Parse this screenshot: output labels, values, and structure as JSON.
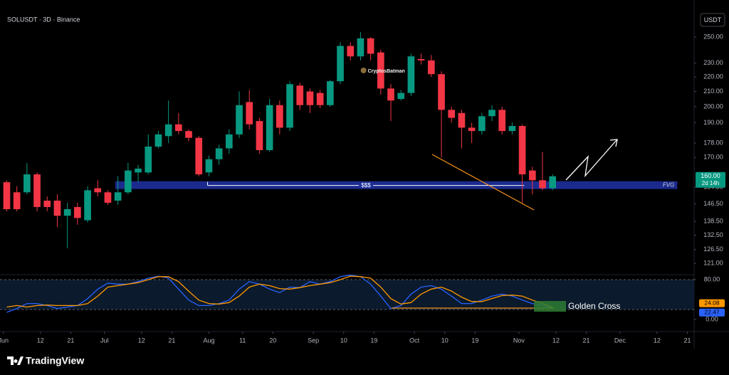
{
  "header": {
    "symbol": "SOLUSDT · 3D · Binance",
    "currency": "USDT"
  },
  "footer": {
    "brand": "TradingView"
  },
  "chart_data": [
    {
      "type": "candlestick",
      "log_scale": true,
      "grid": false,
      "up_color": "#089981",
      "down_color": "#f23645",
      "xlim": [
        -1,
        205
      ],
      "ylim": [
        117,
        269
      ],
      "x": [
        1,
        4,
        7,
        10,
        13,
        16,
        19,
        22,
        25,
        28,
        31,
        34,
        37,
        40,
        43,
        46,
        49,
        52,
        55,
        58,
        61,
        64,
        67,
        70,
        73,
        76,
        79,
        82,
        85,
        88,
        91,
        94,
        97,
        100,
        103,
        106,
        109,
        112,
        115,
        118,
        121,
        124,
        127,
        130,
        133,
        136,
        139,
        142,
        145,
        148,
        151,
        154,
        157,
        160,
        163
      ],
      "open": [
        157,
        152,
        152,
        161,
        148,
        148,
        141,
        145,
        139,
        154,
        152,
        148,
        152,
        162,
        162,
        176,
        182,
        189,
        185,
        181,
        162,
        169,
        175,
        183,
        203,
        191,
        174,
        201,
        187,
        214,
        210,
        209,
        201,
        217,
        243,
        235,
        249,
        238,
        212,
        205,
        209,
        233,
        232,
        222,
        198,
        196,
        187,
        185,
        194,
        198,
        185,
        188,
        163,
        158,
        154
      ],
      "high": [
        158,
        155,
        167,
        162,
        150,
        151,
        147,
        147,
        155,
        158,
        153,
        160,
        167,
        166,
        183,
        185,
        204,
        196,
        186,
        182,
        171,
        177,
        186,
        210,
        211,
        193,
        205,
        204,
        217,
        216,
        212,
        211,
        218,
        246,
        246,
        254,
        250,
        240,
        215,
        211,
        237,
        237,
        236,
        224,
        200,
        198,
        190,
        196,
        201,
        200,
        190,
        189,
        165,
        173,
        161
      ],
      "low": [
        143,
        143,
        151,
        143,
        143,
        136,
        127,
        137,
        138,
        150,
        146,
        146,
        151,
        157,
        161,
        175,
        178,
        183,
        179,
        160,
        160,
        166,
        172,
        181,
        186,
        172,
        173,
        183,
        185,
        198,
        196,
        199,
        200,
        215,
        232,
        232,
        232,
        208,
        191,
        204,
        207,
        229,
        220,
        170,
        190,
        175,
        178,
        183,
        191,
        183,
        183,
        147,
        151,
        153,
        153
      ],
      "close": [
        144,
        144,
        161,
        145,
        145,
        141,
        144,
        140,
        153,
        152,
        147,
        152,
        163,
        164,
        176,
        183,
        189,
        185,
        181,
        161,
        169,
        175,
        183,
        201,
        189,
        174,
        201,
        187,
        215,
        201,
        201,
        201,
        217,
        243,
        235,
        249,
        237,
        212,
        204,
        209,
        235,
        232,
        222,
        198,
        193,
        187,
        185,
        194,
        198,
        185,
        188,
        161,
        158,
        154,
        160
      ],
      "yticks": [
        {
          "value": 250,
          "label": "250.00"
        },
        {
          "value": 230,
          "label": "230.00"
        },
        {
          "value": 220,
          "label": "220.00"
        },
        {
          "value": 210,
          "label": "210.00"
        },
        {
          "value": 200,
          "label": "200.00"
        },
        {
          "value": 190,
          "label": "190.00"
        },
        {
          "value": 178,
          "label": "178.00"
        },
        {
          "value": 170,
          "label": "170.00"
        },
        {
          "value": 154.5,
          "label": "154.50"
        },
        {
          "value": 146.5,
          "label": "146.50"
        },
        {
          "value": 138.5,
          "label": "138.50"
        },
        {
          "value": 132.5,
          "label": "132.50"
        },
        {
          "value": 126.5,
          "label": "126.50"
        },
        {
          "value": 121,
          "label": "121.00"
        }
      ],
      "xticks": [
        {
          "value": 0,
          "label": "Jun"
        },
        {
          "value": 11,
          "label": "12"
        },
        {
          "value": 20,
          "label": "21"
        },
        {
          "value": 30,
          "label": "Jul"
        },
        {
          "value": 41,
          "label": "12"
        },
        {
          "value": 50,
          "label": "21"
        },
        {
          "value": 61,
          "label": "Aug"
        },
        {
          "value": 71,
          "label": "11"
        },
        {
          "value": 80,
          "label": "20"
        },
        {
          "value": 92,
          "label": "Sep"
        },
        {
          "value": 101,
          "label": "10"
        },
        {
          "value": 110,
          "label": "19"
        },
        {
          "value": 122,
          "label": "Oct"
        },
        {
          "value": 131,
          "label": "10"
        },
        {
          "value": 140,
          "label": "19"
        },
        {
          "value": 153,
          "label": "Nov"
        },
        {
          "value": 164,
          "label": "12"
        },
        {
          "value": 173,
          "label": "21"
        },
        {
          "value": 183,
          "label": "Dec"
        },
        {
          "value": 194,
          "label": "12"
        },
        {
          "value": 203,
          "label": "21"
        }
      ],
      "zone": {
        "label": "FVG",
        "x": [
          33.2,
          200
        ],
        "range": [
          153.6,
          157.5
        ],
        "color": "#1e2f9c"
      },
      "level": {
        "label": "$$$",
        "x": [
          60.6,
          154.6
        ],
        "value": 155.4
      },
      "watermark": "CryptosBatman",
      "last_price_label": "160.00",
      "countdown": "2d 14h"
    },
    {
      "type": "line",
      "ylim": [
        -10,
        90
      ],
      "yticks": [
        {
          "value": 80,
          "label": "80.00"
        },
        {
          "value": 0,
          "label": "0.00"
        }
      ],
      "guide_lines": [
        80,
        20
      ],
      "annotation": "Golden Cross",
      "series": [
        {
          "color": "#2962ff",
          "last_label": "22.47",
          "values": [
            14.5,
            22,
            32,
            32,
            28,
            22,
            25,
            28,
            42,
            61,
            73,
            71,
            71,
            76,
            83,
            87,
            83,
            61,
            39,
            28,
            28,
            32,
            39,
            61,
            76,
            71,
            61,
            54,
            65,
            64,
            76,
            71,
            76,
            86,
            89,
            86,
            71,
            47,
            22,
            28,
            51,
            65,
            68,
            61,
            47,
            32,
            32,
            39,
            47,
            51,
            47,
            39,
            32,
            28,
            22.47
          ]
        },
        {
          "color": "#ff9800",
          "last_label": "24.08",
          "values": [
            25,
            28,
            25,
            28,
            29,
            28,
            28,
            28,
            32,
            47,
            65,
            68,
            71,
            74,
            80,
            86,
            86,
            76,
            57,
            39,
            32,
            31,
            34,
            47,
            65,
            71,
            68,
            62,
            61,
            64,
            68,
            71,
            74,
            80,
            87,
            86,
            83,
            65,
            42,
            31,
            34,
            51,
            61,
            65,
            57,
            45,
            36,
            36,
            42,
            48,
            49,
            47,
            39,
            32,
            24.08
          ]
        }
      ]
    }
  ]
}
